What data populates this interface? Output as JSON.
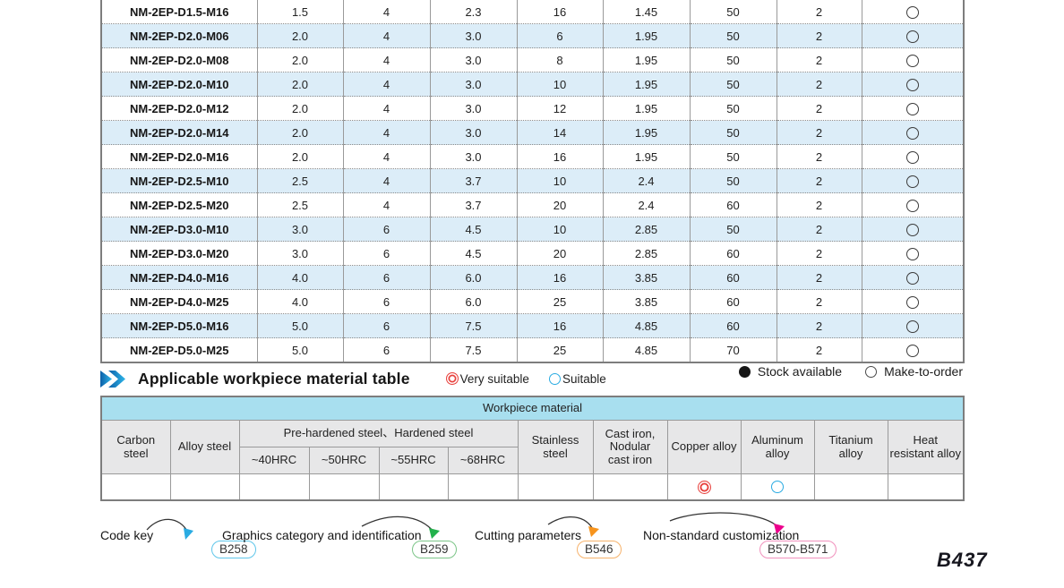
{
  "spec_table": {
    "rows": [
      {
        "model": "NM-2EP-D1.5-M16",
        "values": [
          "1.5",
          "4",
          "2.3",
          "16",
          "1.45",
          "50",
          "2"
        ],
        "stock": "make-to-order"
      },
      {
        "model": "NM-2EP-D2.0-M06",
        "values": [
          "2.0",
          "4",
          "3.0",
          "6",
          "1.95",
          "50",
          "2"
        ],
        "stock": "make-to-order"
      },
      {
        "model": "NM-2EP-D2.0-M08",
        "values": [
          "2.0",
          "4",
          "3.0",
          "8",
          "1.95",
          "50",
          "2"
        ],
        "stock": "make-to-order"
      },
      {
        "model": "NM-2EP-D2.0-M10",
        "values": [
          "2.0",
          "4",
          "3.0",
          "10",
          "1.95",
          "50",
          "2"
        ],
        "stock": "make-to-order"
      },
      {
        "model": "NM-2EP-D2.0-M12",
        "values": [
          "2.0",
          "4",
          "3.0",
          "12",
          "1.95",
          "50",
          "2"
        ],
        "stock": "make-to-order"
      },
      {
        "model": "NM-2EP-D2.0-M14",
        "values": [
          "2.0",
          "4",
          "3.0",
          "14",
          "1.95",
          "50",
          "2"
        ],
        "stock": "make-to-order"
      },
      {
        "model": "NM-2EP-D2.0-M16",
        "values": [
          "2.0",
          "4",
          "3.0",
          "16",
          "1.95",
          "50",
          "2"
        ],
        "stock": "make-to-order"
      },
      {
        "model": "NM-2EP-D2.5-M10",
        "values": [
          "2.5",
          "4",
          "3.7",
          "10",
          "2.4",
          "50",
          "2"
        ],
        "stock": "make-to-order"
      },
      {
        "model": "NM-2EP-D2.5-M20",
        "values": [
          "2.5",
          "4",
          "3.7",
          "20",
          "2.4",
          "60",
          "2"
        ],
        "stock": "make-to-order"
      },
      {
        "model": "NM-2EP-D3.0-M10",
        "values": [
          "3.0",
          "6",
          "4.5",
          "10",
          "2.85",
          "50",
          "2"
        ],
        "stock": "make-to-order"
      },
      {
        "model": "NM-2EP-D3.0-M20",
        "values": [
          "3.0",
          "6",
          "4.5",
          "20",
          "2.85",
          "60",
          "2"
        ],
        "stock": "make-to-order"
      },
      {
        "model": "NM-2EP-D4.0-M16",
        "values": [
          "4.0",
          "6",
          "6.0",
          "16",
          "3.85",
          "60",
          "2"
        ],
        "stock": "make-to-order"
      },
      {
        "model": "NM-2EP-D4.0-M25",
        "values": [
          "4.0",
          "6",
          "6.0",
          "25",
          "3.85",
          "60",
          "2"
        ],
        "stock": "make-to-order"
      },
      {
        "model": "NM-2EP-D5.0-M16",
        "values": [
          "5.0",
          "6",
          "7.5",
          "16",
          "4.85",
          "60",
          "2"
        ],
        "stock": "make-to-order"
      },
      {
        "model": "NM-2EP-D5.0-M25",
        "values": [
          "5.0",
          "6",
          "7.5",
          "25",
          "4.85",
          "70",
          "2"
        ],
        "stock": "make-to-order"
      }
    ]
  },
  "section_heading": {
    "title": "Applicable workpiece material table",
    "legend": [
      {
        "symbol": "double-circle-red",
        "label": "Very suitable",
        "color": "#e8413d"
      },
      {
        "symbol": "circle-blue",
        "label": "Suitable",
        "color": "#29abe2"
      }
    ]
  },
  "stock_legend": [
    {
      "symbol": "filled-circle",
      "label": "Stock available"
    },
    {
      "symbol": "open-circle",
      "label": "Make-to-order"
    }
  ],
  "workpiece_table": {
    "title": "Workpiece material",
    "group_header": "Pre-hardened steel、Hardened steel",
    "columns": [
      "Carbon steel",
      "Alloy steel",
      "~40HRC",
      "~50HRC",
      "~55HRC",
      "~68HRC",
      "Stainless steel",
      "Cast iron, Nodular cast iron",
      "Copper alloy",
      "Aluminum alloy",
      "Titanium alloy",
      "Heat resistant alloy"
    ],
    "ratings": {
      "Copper alloy": "very-suitable",
      "Aluminum alloy": "suitable"
    }
  },
  "footer_links": [
    {
      "label": "Code key",
      "page": "B258",
      "badge_color": "#5fc6ea",
      "arrow_color": "#29abe2"
    },
    {
      "label": "Graphics category and identification",
      "page": "B259",
      "badge_color": "#7cc588",
      "arrow_color": "#22b14c"
    },
    {
      "label": "Cutting parameters",
      "page": "B546",
      "badge_color": "#f6b26b",
      "arrow_color": "#f7941d"
    },
    {
      "label": "Non-standard customization",
      "page": "B570-B571",
      "badge_color": "#f191bd",
      "arrow_color": "#ec008c"
    }
  ],
  "page_number": "B437",
  "colors": {
    "row_stripe": "#dcedf8",
    "workpiece_header": "#a8dfef",
    "gray_header": "#e7e7e8",
    "heading_arrow_blue": "#1273bd"
  }
}
